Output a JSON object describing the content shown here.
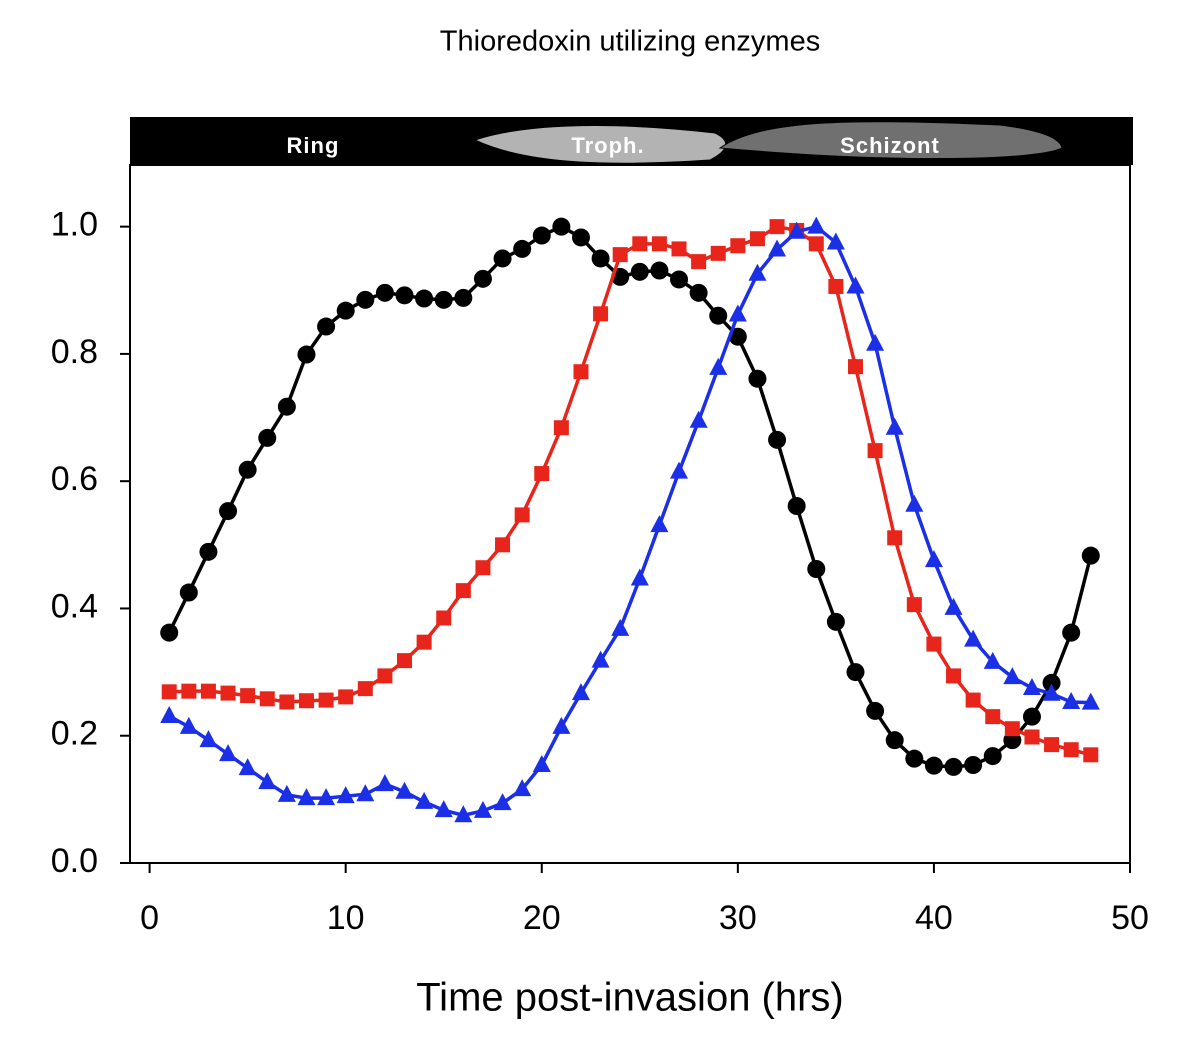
{
  "chart_data": {
    "type": "line",
    "title": "Thioredoxin utilizing enzymes",
    "x_label": "Time post-invasion (hrs)",
    "stages": [
      "Ring",
      "Troph.",
      "Schizont"
    ],
    "x": [
      1,
      2,
      3,
      4,
      5,
      6,
      7,
      8,
      9,
      10,
      11,
      12,
      13,
      14,
      15,
      16,
      17,
      18,
      19,
      20,
      21,
      22,
      23,
      24,
      25,
      26,
      27,
      28,
      29,
      30,
      31,
      32,
      33,
      34,
      35,
      36,
      37,
      38,
      39,
      40,
      41,
      42,
      43,
      44,
      45,
      46,
      47,
      48
    ],
    "series": [
      {
        "color": "#000000",
        "marker": "circle",
        "values": [
          0.362,
          0.425,
          0.489,
          0.553,
          0.618,
          0.668,
          0.717,
          0.799,
          0.843,
          0.868,
          0.885,
          0.896,
          0.892,
          0.887,
          0.885,
          0.888,
          0.918,
          0.95,
          0.965,
          0.986,
          1.0,
          0.983,
          0.95,
          0.921,
          0.929,
          0.931,
          0.917,
          0.896,
          0.86,
          0.827,
          0.761,
          0.665,
          0.561,
          0.462,
          0.379,
          0.3,
          0.239,
          0.193,
          0.164,
          0.153,
          0.151,
          0.154,
          0.168,
          0.193,
          0.23,
          0.283,
          0.362,
          0.483
        ]
      },
      {
        "color": "#e8251b",
        "marker": "square",
        "values": [
          0.269,
          0.27,
          0.27,
          0.267,
          0.263,
          0.258,
          0.253,
          0.255,
          0.256,
          0.261,
          0.274,
          0.294,
          0.318,
          0.347,
          0.385,
          0.428,
          0.464,
          0.5,
          0.547,
          0.612,
          0.684,
          0.772,
          0.863,
          0.956,
          0.973,
          0.973,
          0.965,
          0.945,
          0.958,
          0.97,
          0.981,
          1.0,
          0.994,
          0.973,
          0.906,
          0.78,
          0.648,
          0.511,
          0.406,
          0.344,
          0.294,
          0.256,
          0.23,
          0.211,
          0.198,
          0.186,
          0.178,
          0.17
        ]
      },
      {
        "color": "#1a2fe6",
        "marker": "triangle",
        "values": [
          0.231,
          0.214,
          0.193,
          0.171,
          0.149,
          0.127,
          0.107,
          0.102,
          0.102,
          0.105,
          0.108,
          0.124,
          0.112,
          0.096,
          0.083,
          0.075,
          0.082,
          0.094,
          0.116,
          0.154,
          0.214,
          0.267,
          0.318,
          0.368,
          0.447,
          0.531,
          0.615,
          0.695,
          0.778,
          0.862,
          0.926,
          0.964,
          0.992,
          1.0,
          0.975,
          0.906,
          0.816,
          0.684,
          0.563,
          0.476,
          0.401,
          0.351,
          0.316,
          0.292,
          0.275,
          0.266,
          0.253,
          0.252
        ]
      }
    ],
    "xlim": [
      -1,
      50
    ],
    "xticks": [
      0,
      10,
      20,
      30,
      40,
      50
    ],
    "ylim": [
      0,
      1.1
    ],
    "yticks": [
      {
        "value": 0,
        "label": "0.0"
      },
      {
        "value": 0.2,
        "label": "0.2"
      },
      {
        "value": 0.4,
        "label": "0.4"
      },
      {
        "value": 0.6,
        "label": "0.6"
      },
      {
        "value": 0.8,
        "label": "0.8"
      },
      {
        "value": 1.0,
        "label": "1.0"
      }
    ],
    "grid": false
  }
}
